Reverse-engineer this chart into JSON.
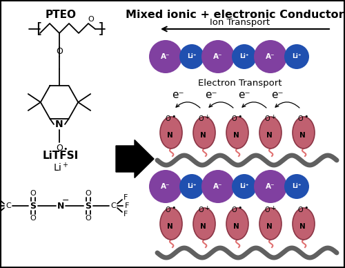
{
  "title": "Mixed ionic + electronic Conductor",
  "pteo_label": "PTEO",
  "litfsi_label": "LiTFSI",
  "ion_transport_label": "Ion Transport",
  "electron_transport_label": "Electron Transport",
  "bg_color": "#ffffff",
  "purple_color": "#8040A0",
  "blue_color": "#2050B0",
  "pink_color": "#C06870",
  "dark_pink": "#9B3A4A",
  "gray_color": "#707070",
  "title_fontsize": 11.5,
  "label_fontsize": 9.5,
  "ion_fontsize": 6.5
}
